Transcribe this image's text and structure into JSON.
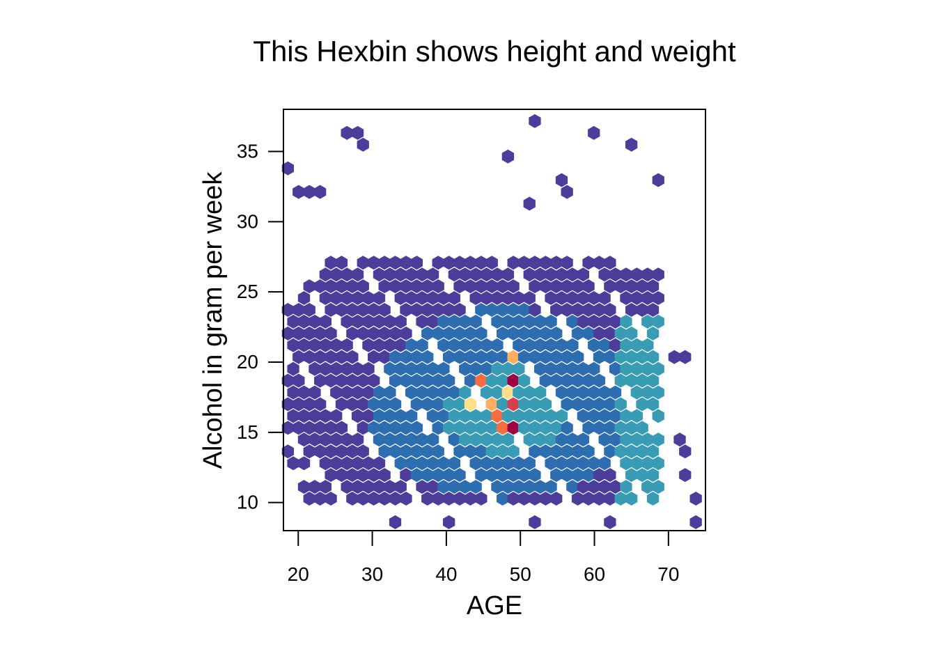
{
  "chart_data": {
    "type": "heatmap",
    "subtype": "hexbin",
    "title": "This Hexbin shows height and weight",
    "xlabel": "AGE",
    "ylabel": "Alcohol in gram per week",
    "xlim": [
      18,
      75
    ],
    "ylim": [
      8,
      38
    ],
    "xticks": [
      20,
      30,
      40,
      50,
      60,
      70
    ],
    "yticks": [
      10,
      15,
      20,
      25,
      30,
      35
    ],
    "colorscale": [
      "#4b3d99",
      "#2e6db0",
      "#3a9bb4",
      "#66c2a5",
      "#abdda4",
      "#e6f598",
      "#fee08b",
      "#fdae61",
      "#f46d43",
      "#d53e4f",
      "#9e0142"
    ],
    "bins": {
      "x_start": 18.6,
      "x_step": 1.45,
      "y_start": 8.6,
      "y_step": 0.84,
      "core_rows": [
        {
          "row": 2,
          "x_from": 2,
          "x_to": 34,
          "level": 0.05
        },
        {
          "row": 3,
          "x_from": 1,
          "x_to": 34,
          "level": 0.08
        },
        {
          "row": 4,
          "x_from": 3,
          "x_to": 34,
          "level": 0.1
        },
        {
          "row": 5,
          "x_from": 0,
          "x_to": 34,
          "level": 0.14
        },
        {
          "row": 6,
          "x_from": 0,
          "x_to": 34,
          "level": 0.16
        },
        {
          "row": 7,
          "x_from": 0,
          "x_to": 34,
          "level": 0.2
        },
        {
          "row": 8,
          "x_from": 0,
          "x_to": 34,
          "level": 0.22
        },
        {
          "row": 9,
          "x_from": 0,
          "x_to": 34,
          "level": 0.22
        },
        {
          "row": 10,
          "x_from": 0,
          "x_to": 34,
          "level": 0.22
        },
        {
          "row": 11,
          "x_from": 0,
          "x_to": 34,
          "level": 0.2
        },
        {
          "row": 12,
          "x_from": 0,
          "x_to": 34,
          "level": 0.18
        },
        {
          "row": 13,
          "x_from": 0,
          "x_to": 34,
          "level": 0.16
        },
        {
          "row": 14,
          "x_from": 0,
          "x_to": 34,
          "level": 0.14
        },
        {
          "row": 15,
          "x_from": 0,
          "x_to": 34,
          "level": 0.12
        },
        {
          "row": 16,
          "x_from": 0,
          "x_to": 34,
          "level": 0.1
        },
        {
          "row": 17,
          "x_from": 0,
          "x_to": 34,
          "level": 0.08
        },
        {
          "row": 18,
          "x_from": 0,
          "x_to": 34,
          "level": 0.06
        },
        {
          "row": 19,
          "x_from": 1,
          "x_to": 34,
          "level": 0.04
        },
        {
          "row": 20,
          "x_from": 2,
          "x_to": 34,
          "level": 0.03
        },
        {
          "row": 21,
          "x_from": 3,
          "x_to": 34,
          "level": 0.02
        },
        {
          "row": 22,
          "x_from": 4,
          "x_to": 30,
          "level": 0.01
        }
      ],
      "hot": [
        {
          "col": 21,
          "row": 8,
          "level": 1.0
        },
        {
          "col": 21,
          "row": 10,
          "level": 0.92
        },
        {
          "col": 21,
          "row": 12,
          "level": 0.98
        },
        {
          "col": 20,
          "row": 8,
          "level": 0.78
        },
        {
          "col": 19,
          "row": 9,
          "level": 0.8
        },
        {
          "col": 18,
          "row": 12,
          "level": 0.75
        },
        {
          "col": 21,
          "row": 14,
          "level": 0.7
        },
        {
          "col": 19,
          "row": 10,
          "level": 0.66
        },
        {
          "col": 17,
          "row": 10,
          "level": 0.6
        },
        {
          "col": 20,
          "row": 11,
          "level": 0.55
        }
      ],
      "outliers": [
        [
          0,
          30
        ],
        [
          1,
          28
        ],
        [
          2,
          28
        ],
        [
          3,
          28
        ],
        [
          5,
          33
        ],
        [
          6,
          33
        ],
        [
          7,
          32
        ],
        [
          23,
          34
        ],
        [
          28,
          33
        ],
        [
          32,
          32
        ],
        [
          34,
          29
        ],
        [
          25,
          29
        ],
        [
          26,
          28
        ],
        [
          20,
          31
        ],
        [
          22,
          27
        ],
        [
          36,
          14
        ],
        [
          37,
          14
        ],
        [
          39,
          13
        ],
        [
          40,
          12
        ],
        [
          44,
          15
        ],
        [
          42,
          7
        ],
        [
          44,
          4
        ],
        [
          45,
          5
        ],
        [
          46,
          3
        ],
        [
          36,
          7
        ],
        [
          37,
          6
        ],
        [
          37,
          4
        ],
        [
          38,
          2
        ],
        [
          38,
          0
        ],
        [
          10,
          0
        ],
        [
          15,
          0
        ],
        [
          23,
          0
        ],
        [
          30,
          0
        ]
      ]
    }
  }
}
